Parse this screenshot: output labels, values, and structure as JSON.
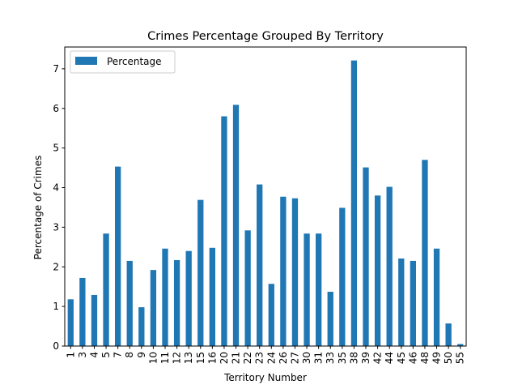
{
  "chart_data": {
    "type": "bar",
    "title": "Crimes Percentage Grouped By Territory",
    "xlabel": "Territory Number",
    "ylabel": "Percentage of Crimes",
    "ylim": [
      0,
      7.55
    ],
    "yticks": [
      0,
      1,
      2,
      3,
      4,
      5,
      6,
      7
    ],
    "grid": false,
    "legend": "top-left",
    "bar_color": "#1f77b4",
    "categories": [
      "1",
      "3",
      "4",
      "5",
      "7",
      "8",
      "9",
      "10",
      "11",
      "12",
      "13",
      "15",
      "16",
      "20",
      "21",
      "22",
      "23",
      "24",
      "26",
      "27",
      "30",
      "31",
      "33",
      "35",
      "38",
      "39",
      "42",
      "44",
      "45",
      "46",
      "48",
      "49",
      "50",
      "55"
    ],
    "series": [
      {
        "name": "Percentage",
        "values": [
          1.18,
          1.72,
          1.29,
          2.84,
          4.53,
          2.15,
          0.98,
          1.92,
          2.46,
          2.17,
          2.4,
          3.69,
          2.48,
          5.8,
          6.09,
          2.92,
          4.08,
          1.57,
          3.77,
          3.73,
          2.84,
          2.84,
          1.37,
          3.49,
          7.21,
          4.51,
          3.8,
          4.02,
          2.21,
          2.15,
          4.7,
          2.46,
          0.57,
          0.05
        ]
      }
    ]
  }
}
